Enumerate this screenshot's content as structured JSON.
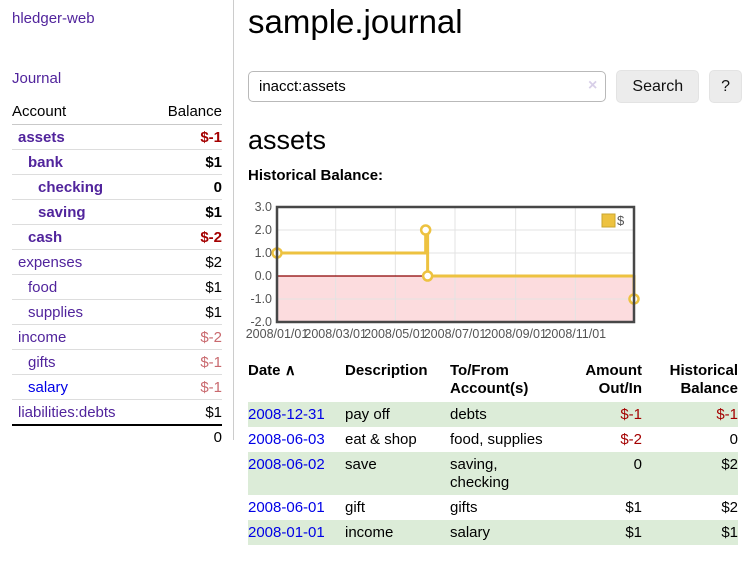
{
  "app": {
    "title": "hledger-web"
  },
  "sidebar": {
    "journal_link": "Journal",
    "accounts_table": {
      "headers": {
        "account": "Account",
        "balance": "Balance"
      },
      "rows": [
        {
          "name": "assets",
          "balance": "$-1",
          "indent": 1,
          "bold": true,
          "negative": "strong"
        },
        {
          "name": "bank",
          "balance": "$1",
          "indent": 2,
          "bold": true,
          "negative": "none"
        },
        {
          "name": "checking",
          "balance": "0",
          "indent": 3,
          "bold": true,
          "negative": "none"
        },
        {
          "name": "saving",
          "balance": "$1",
          "indent": 3,
          "bold": true,
          "negative": "none"
        },
        {
          "name": "cash",
          "balance": "$-2",
          "indent": 2,
          "bold": true,
          "negative": "strong"
        },
        {
          "name": "expenses",
          "balance": "$2",
          "indent": 1,
          "bold": false,
          "negative": "none"
        },
        {
          "name": "food",
          "balance": "$1",
          "indent": 2,
          "bold": false,
          "negative": "none"
        },
        {
          "name": "supplies",
          "balance": "$1",
          "indent": 2,
          "bold": false,
          "negative": "none"
        },
        {
          "name": "income",
          "balance": "$-2",
          "indent": 1,
          "bold": false,
          "negative": "soft"
        },
        {
          "name": "gifts",
          "balance": "$-1",
          "indent": 2,
          "bold": false,
          "negative": "soft"
        },
        {
          "name": "salary",
          "balance": "$-1",
          "indent": 2,
          "bold": false,
          "negative": "soft",
          "link_color": "blue"
        },
        {
          "name": "liabilities:debts",
          "balance": "$1",
          "indent": 1,
          "bold": false,
          "negative": "none"
        }
      ],
      "total": "0"
    }
  },
  "header": {
    "title": "sample.journal"
  },
  "search": {
    "value": "inacct:assets",
    "clear_icon": "×",
    "button_label": "Search",
    "help_label": "?"
  },
  "account_page": {
    "title": "assets",
    "chart_label": "Historical Balance:"
  },
  "chart_data": {
    "type": "line",
    "style": "step-after",
    "series": [
      {
        "name": "$",
        "points": [
          [
            "2008-01-01",
            1.0
          ],
          [
            "2008-06-01",
            2.0
          ],
          [
            "2008-06-03",
            0.0
          ],
          [
            "2008-12-31",
            -1.0
          ]
        ]
      }
    ],
    "x_range": [
      "2008-01-01",
      "2008-12-31"
    ],
    "ylim": [
      -2.0,
      3.0
    ],
    "yticks": [
      3.0,
      2.0,
      1.0,
      0.0,
      -1.0,
      -2.0
    ],
    "ytick_labels": [
      "3.0",
      "2.0",
      "1.0",
      "0.0",
      "-1.0",
      "-2.0"
    ],
    "xticks": [
      "2008-01-01",
      "2008-03-01",
      "2008-05-01",
      "2008-07-01",
      "2008-09-01",
      "2008-11-01"
    ],
    "xtick_labels": [
      "2008/01/01",
      "2008/03/01",
      "2008/05/01",
      "2008/07/01",
      "2008/09/01",
      "2008/11/01"
    ],
    "legend": [
      {
        "label": "$",
        "color": "#edc240"
      }
    ],
    "legend_position": "top-right",
    "grid": true,
    "colors": {
      "line": "#edc240",
      "point_fill": "#ffffff",
      "negative_fill": "#fcdcde",
      "zero_line": "#8b0000",
      "border": "#474747",
      "gridline": "#e3e3e3",
      "tick_text": "#545454",
      "legend_box_border": "#c9a62f"
    }
  },
  "register": {
    "headers": [
      {
        "label": "Date",
        "sort_indicator": "∧"
      },
      {
        "label": "Description"
      },
      {
        "label": "To/From Account(s)"
      },
      {
        "label": "Amount Out/In"
      },
      {
        "label": "Historical Balance"
      }
    ],
    "rows": [
      {
        "date": "2008-12-31",
        "description": "pay off",
        "accounts": "debts",
        "amount": "$-1",
        "balance": "$-1"
      },
      {
        "date": "2008-06-03",
        "description": "eat & shop",
        "accounts": "food, supplies",
        "amount": "$-2",
        "balance": "0"
      },
      {
        "date": "2008-06-02",
        "description": "save",
        "accounts": "saving, checking",
        "amount": "0",
        "balance": "$2"
      },
      {
        "date": "2008-06-01",
        "description": "gift",
        "accounts": "gifts",
        "amount": "$1",
        "balance": "$2"
      },
      {
        "date": "2008-01-01",
        "description": "income",
        "accounts": "salary",
        "amount": "$1",
        "balance": "$1"
      }
    ]
  }
}
